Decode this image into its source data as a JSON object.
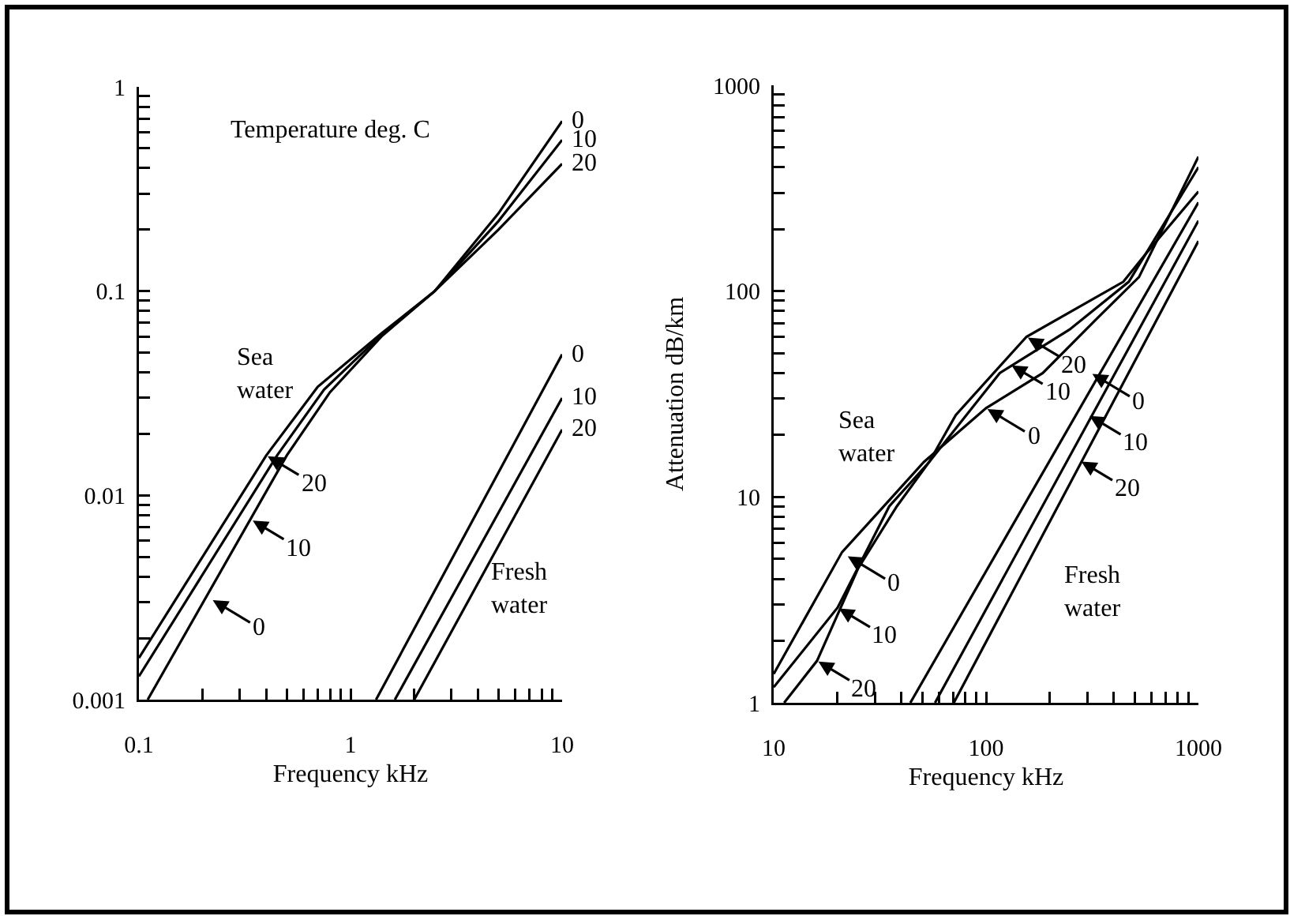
{
  "chart_data": [
    {
      "type": "line",
      "xlabel": "Frequency kHz",
      "log": "xy",
      "grid": false,
      "marker": "none",
      "line_style": "solid",
      "xlim": [
        0.1,
        10
      ],
      "ylim": [
        0.001,
        1
      ],
      "xticks": [
        0.1,
        {
          "value": 0.2,
          "label": null
        },
        {
          "value": 0.3,
          "label": null
        },
        {
          "value": 0.4,
          "label": null
        },
        {
          "value": 0.5,
          "label": null
        },
        {
          "value": 0.6,
          "label": null
        },
        {
          "value": 0.7,
          "label": null
        },
        {
          "value": 0.8,
          "label": null
        },
        {
          "value": 0.9,
          "label": null
        },
        1,
        {
          "value": 2,
          "label": null
        },
        {
          "value": 3,
          "label": null
        },
        {
          "value": 4,
          "label": null
        },
        {
          "value": 5,
          "label": null
        },
        {
          "value": 6,
          "label": null
        },
        {
          "value": 7,
          "label": null
        },
        {
          "value": 8,
          "label": null
        },
        {
          "value": 9,
          "label": null
        },
        10
      ],
      "yticks": [
        0.001,
        {
          "value": 0.002,
          "label": null
        },
        {
          "value": 0.003,
          "label": null
        },
        {
          "value": 0.004,
          "label": null
        },
        {
          "value": 0.005,
          "label": null
        },
        {
          "value": 0.006,
          "label": null
        },
        {
          "value": 0.007,
          "label": null
        },
        {
          "value": 0.008,
          "label": null
        },
        {
          "value": 0.009,
          "label": null
        },
        0.01,
        {
          "value": 0.02,
          "label": null
        },
        {
          "value": 0.03,
          "label": null
        },
        {
          "value": 0.04,
          "label": null
        },
        {
          "value": 0.05,
          "label": null
        },
        {
          "value": 0.06,
          "label": null
        },
        {
          "value": 0.07,
          "label": null
        },
        {
          "value": 0.08,
          "label": null
        },
        {
          "value": 0.09,
          "label": null
        },
        0.1,
        {
          "value": 0.2,
          "label": null
        },
        {
          "value": 0.3,
          "label": null
        },
        {
          "value": 0.4,
          "label": null
        },
        {
          "value": 0.5,
          "label": null
        },
        {
          "value": 0.6,
          "label": null
        },
        {
          "value": 0.7,
          "label": null
        },
        {
          "value": 0.8,
          "label": null
        },
        {
          "value": 0.9,
          "label": null
        },
        1
      ],
      "series": [
        {
          "color": "#000000",
          "x": [
            0.1,
            0.4,
            0.7,
            1.4,
            2.5,
            5,
            10
          ],
          "values": [
            0.0016,
            0.0157,
            0.034,
            0.062,
            0.1,
            0.2,
            0.42
          ]
        },
        {
          "color": "#000000",
          "x": [
            0.1,
            0.45,
            0.75,
            1.4,
            2.5,
            5,
            10
          ],
          "values": [
            0.0013,
            0.0157,
            0.033,
            0.061,
            0.1,
            0.22,
            0.55
          ]
        },
        {
          "color": "#000000",
          "x": [
            0.11,
            0.5,
            0.8,
            1.4,
            2.5,
            5,
            10
          ],
          "values": [
            0.001,
            0.0157,
            0.032,
            0.06,
            0.1,
            0.24,
            0.68
          ]
        },
        {
          "color": "#000000",
          "x": [
            1.32,
            10
          ],
          "values": [
            0.001,
            0.049
          ]
        },
        {
          "color": "#000000",
          "x": [
            1.62,
            10
          ],
          "values": [
            0.001,
            0.03
          ]
        },
        {
          "color": "#000000",
          "x": [
            2,
            10
          ],
          "values": [
            0.001,
            0.021
          ]
        }
      ],
      "annotations": [
        "Temperature deg. C",
        {
          "text": "0",
          "x": 10,
          "y": 0.68
        },
        {
          "text": "10",
          "x": 10,
          "y": 0.55
        },
        {
          "text": "20",
          "x": 10,
          "y": 0.42
        },
        {
          "text": "0",
          "x": 10,
          "y": 0.049
        },
        {
          "text": "10",
          "x": 10,
          "y": 0.03
        },
        {
          "text": "20",
          "x": 10,
          "y": 0.021
        },
        {
          "text": "20",
          "x": 0.4,
          "y": 0.0157
        },
        {
          "text": "10",
          "x": 0.34,
          "y": 0.0076
        },
        {
          "text": "0",
          "x": 0.22,
          "y": 0.0031
        },
        "Sea\nwater",
        "Fresh\nwater"
      ]
    },
    {
      "type": "line",
      "xlabel": "Frequency kHz",
      "ylabel": "Attenuation dB/km",
      "log": "xy",
      "grid": false,
      "marker": "none",
      "line_style": "solid",
      "xlim": [
        10,
        1000
      ],
      "ylim": [
        1,
        1000
      ],
      "xticks": [
        10,
        {
          "value": 20,
          "label": null
        },
        {
          "value": 30,
          "label": null
        },
        {
          "value": 40,
          "label": null
        },
        {
          "value": 50,
          "label": null
        },
        {
          "value": 60,
          "label": null
        },
        {
          "value": 70,
          "label": null
        },
        {
          "value": 80,
          "label": null
        },
        {
          "value": 90,
          "label": null
        },
        100,
        {
          "value": 200,
          "label": null
        },
        {
          "value": 300,
          "label": null
        },
        {
          "value": 400,
          "label": null
        },
        {
          "value": 500,
          "label": null
        },
        {
          "value": 600,
          "label": null
        },
        {
          "value": 700,
          "label": null
        },
        {
          "value": 800,
          "label": null
        },
        {
          "value": 900,
          "label": null
        },
        1000
      ],
      "yticks": [
        1,
        {
          "value": 2,
          "label": null
        },
        {
          "value": 3,
          "label": null
        },
        {
          "value": 4,
          "label": null
        },
        {
          "value": 5,
          "label": null
        },
        {
          "value": 6,
          "label": null
        },
        {
          "value": 7,
          "label": null
        },
        {
          "value": 8,
          "label": null
        },
        {
          "value": 9,
          "label": null
        },
        10,
        {
          "value": 20,
          "label": null
        },
        {
          "value": 30,
          "label": null
        },
        {
          "value": 40,
          "label": null
        },
        {
          "value": 50,
          "label": null
        },
        {
          "value": 60,
          "label": null
        },
        {
          "value": 70,
          "label": null
        },
        {
          "value": 80,
          "label": null
        },
        {
          "value": 90,
          "label": null
        },
        100,
        {
          "value": 200,
          "label": null
        },
        {
          "value": 300,
          "label": null
        },
        {
          "value": 400,
          "label": null
        },
        {
          "value": 500,
          "label": null
        },
        {
          "value": 600,
          "label": null
        },
        {
          "value": 700,
          "label": null
        },
        {
          "value": 800,
          "label": null
        },
        {
          "value": 900,
          "label": null
        },
        1000
      ],
      "series": [
        {
          "color": "#000000",
          "x": [
            10,
            21,
            32,
            51,
            100,
            185,
            330,
            525,
            1000
          ],
          "values": [
            1.38,
            5.4,
            8.7,
            14.8,
            27,
            40,
            73,
            117,
            450
          ]
        },
        {
          "color": "#000000",
          "x": [
            10,
            20,
            35,
            54,
            116,
            247,
            470,
            1000
          ],
          "values": [
            1.19,
            2.9,
            9,
            14.8,
            40,
            65,
            111,
            400
          ]
        },
        {
          "color": "#000000",
          "x": [
            11.2,
            16,
            25,
            38,
            54,
            72,
            155,
            443,
            560,
            1000
          ],
          "values": [
            1,
            1.6,
            4.5,
            9,
            14.8,
            25,
            60,
            111,
            150,
            305
          ]
        },
        {
          "color": "#000000",
          "x": [
            44,
            1000
          ],
          "values": [
            1,
            270
          ]
        },
        {
          "color": "#000000",
          "x": [
            57.5,
            1000
          ],
          "values": [
            1,
            220
          ]
        },
        {
          "color": "#000000",
          "x": [
            70.5,
            1000
          ],
          "values": [
            1,
            175
          ]
        }
      ],
      "annotations": [
        {
          "text": "0",
          "x": 22,
          "y": 5.2
        },
        {
          "text": "10",
          "x": 20,
          "y": 2.9
        },
        {
          "text": "20",
          "x": 16,
          "y": 1.6
        },
        {
          "text": "20",
          "x": 155,
          "y": 60
        },
        {
          "text": "10",
          "x": 130,
          "y": 44
        },
        {
          "text": "0",
          "x": 100,
          "y": 27
        },
        {
          "text": "0",
          "x": 312,
          "y": 40
        },
        {
          "text": "10",
          "x": 303,
          "y": 25
        },
        {
          "text": "20",
          "x": 277,
          "y": 15
        },
        "Sea\nwater",
        "Fresh\nwater"
      ]
    }
  ]
}
